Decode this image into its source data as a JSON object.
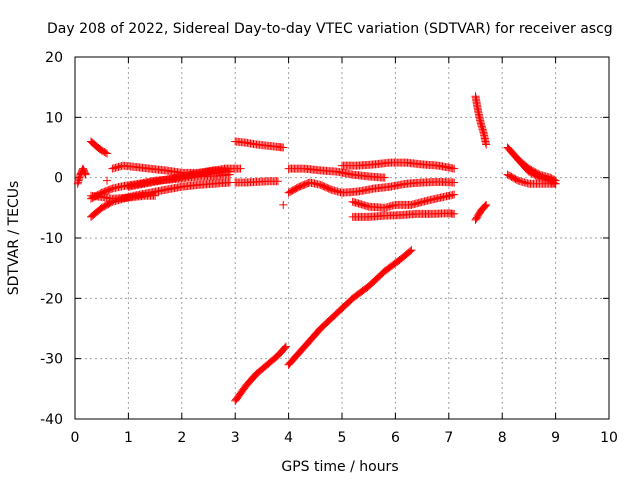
{
  "chart_data": {
    "type": "scatter",
    "title": "Day 208 of 2022, Sidereal Day-to-day VTEC variation (SDTVAR) for receiver ascg",
    "xlabel": "GPS time / hours",
    "ylabel": "SDTVAR / TECUs",
    "xlim": [
      0,
      10
    ],
    "ylim": [
      -40,
      20
    ],
    "xticks": [
      0,
      1,
      2,
      3,
      4,
      5,
      6,
      7,
      8,
      9,
      10
    ],
    "yticks": [
      -40,
      -30,
      -20,
      -10,
      0,
      10,
      20
    ],
    "xtick_labels": [
      "0",
      "1",
      "2",
      "3",
      "4",
      "5",
      "6",
      "7",
      "8",
      "9",
      "10"
    ],
    "ytick_labels": [
      "-40",
      "-30",
      "-20",
      "-10",
      "0",
      "10",
      "20"
    ],
    "grid": true,
    "marker": "+",
    "color": "#ff0000",
    "series": [
      {
        "x": [
          0.05,
          0.1,
          0.15,
          0.2
        ],
        "y": [
          -1.0,
          0.5,
          1.5,
          0.5
        ]
      },
      {
        "x": [
          0.3,
          0.4,
          0.5,
          0.6
        ],
        "y": [
          6.0,
          5.2,
          4.5,
          4.0
        ]
      },
      {
        "x": [
          0.3,
          0.5,
          0.7,
          0.9,
          1.1,
          1.4,
          1.7,
          2.0,
          2.3,
          2.6,
          2.9
        ],
        "y": [
          -6.5,
          -5.0,
          -4.0,
          -3.5,
          -3.0,
          -2.5,
          -2.0,
          -1.5,
          -1.2,
          -1.0,
          -0.8
        ]
      },
      {
        "x": [
          0.3,
          0.5,
          0.7,
          0.9,
          1.2,
          1.5,
          1.8,
          2.1,
          2.4,
          2.7,
          2.9
        ],
        "y": [
          -3.5,
          -2.5,
          -1.8,
          -1.4,
          -1.0,
          -0.5,
          -0.3,
          0.0,
          0.2,
          0.3,
          0.5
        ]
      },
      {
        "x": [
          0.3,
          0.5,
          0.7,
          1.0,
          1.3,
          1.5
        ],
        "y": [
          -3.0,
          -3.2,
          -3.5,
          -3.3,
          -3.0,
          -3.0
        ]
      },
      {
        "x": [
          0.7,
          0.9,
          1.1,
          1.4,
          1.7,
          2.0,
          2.3,
          2.6,
          2.9
        ],
        "y": [
          1.5,
          2.0,
          1.8,
          1.5,
          1.2,
          0.8,
          0.8,
          1.2,
          1.0
        ]
      },
      {
        "x": [
          1.0,
          1.3,
          1.6,
          1.9,
          2.2,
          2.5,
          2.8,
          3.1
        ],
        "y": [
          -1.5,
          -1.0,
          -0.5,
          0.0,
          0.5,
          1.0,
          1.5,
          1.5
        ]
      },
      {
        "x": [
          0.6
        ],
        "y": [
          -0.5
        ]
      },
      {
        "x": [
          3.0,
          3.2,
          3.4,
          3.6,
          3.8,
          3.9
        ],
        "y": [
          6.0,
          5.8,
          5.5,
          5.3,
          5.1,
          5.0
        ]
      },
      {
        "x": [
          3.0,
          3.2,
          3.4,
          3.6,
          3.8
        ],
        "y": [
          -0.8,
          -0.8,
          -0.7,
          -0.6,
          -0.6
        ]
      },
      {
        "x": [
          3.0,
          3.2,
          3.4,
          3.6,
          3.8,
          3.95
        ],
        "y": [
          -37.0,
          -34.5,
          -32.5,
          -31.0,
          -29.5,
          -28.0
        ]
      },
      {
        "x": [
          3.9
        ],
        "y": [
          -4.5
        ]
      },
      {
        "x": [
          4.0,
          4.3,
          4.6,
          4.9,
          5.2,
          5.5,
          5.8,
          6.1,
          6.3
        ],
        "y": [
          -31.0,
          -28.0,
          -25.0,
          -22.5,
          -20.0,
          -18.0,
          -15.5,
          -13.5,
          -12.0
        ]
      },
      {
        "x": [
          4.0,
          4.3,
          4.6,
          4.9,
          5.2,
          5.5,
          5.8
        ],
        "y": [
          1.5,
          1.5,
          1.2,
          1.0,
          0.5,
          0.2,
          0.0
        ]
      },
      {
        "x": [
          4.0,
          4.2,
          4.4,
          4.6,
          4.8,
          5.0,
          5.3,
          5.6,
          5.9,
          6.2,
          6.5,
          6.8,
          7.1
        ],
        "y": [
          -2.5,
          -1.5,
          -0.8,
          -1.2,
          -2.0,
          -2.5,
          -2.3,
          -1.8,
          -1.5,
          -1.0,
          -0.8,
          -0.7,
          -0.8
        ]
      },
      {
        "x": [
          5.0,
          5.3,
          5.6,
          5.9,
          6.2,
          6.5,
          6.8,
          7.1
        ],
        "y": [
          2.0,
          2.0,
          2.2,
          2.5,
          2.5,
          2.2,
          2.0,
          1.5
        ]
      },
      {
        "x": [
          5.2,
          5.5,
          5.8,
          6.0,
          6.3,
          6.6,
          6.9,
          7.1
        ],
        "y": [
          -4.0,
          -4.8,
          -5.0,
          -4.5,
          -4.5,
          -3.8,
          -3.2,
          -2.8
        ]
      },
      {
        "x": [
          5.2,
          5.5,
          5.8,
          6.1,
          6.4,
          6.7,
          7.0,
          7.1
        ],
        "y": [
          -6.5,
          -6.5,
          -6.3,
          -6.2,
          -6.0,
          -6.0,
          -5.9,
          -6.0
        ]
      },
      {
        "x": [
          7.5,
          7.55,
          7.6,
          7.65,
          7.7
        ],
        "y": [
          13.5,
          11.0,
          9.0,
          7.5,
          5.5
        ]
      },
      {
        "x": [
          7.5,
          7.6,
          7.7
        ],
        "y": [
          -7.0,
          -5.5,
          -4.5
        ]
      },
      {
        "x": [
          8.1,
          8.3,
          8.5,
          8.7,
          8.9,
          9.0
        ],
        "y": [
          5.0,
          3.0,
          1.5,
          0.5,
          0.0,
          -0.5
        ]
      },
      {
        "x": [
          8.3,
          8.5,
          8.7,
          8.9,
          9.0
        ],
        "y": [
          3.0,
          1.0,
          0.0,
          -0.5,
          -1.0
        ]
      },
      {
        "x": [
          8.1,
          8.3,
          8.5,
          8.7,
          8.9,
          9.0
        ],
        "y": [
          0.5,
          -0.5,
          -1.0,
          -1.0,
          -1.0,
          -1.0
        ]
      }
    ]
  }
}
